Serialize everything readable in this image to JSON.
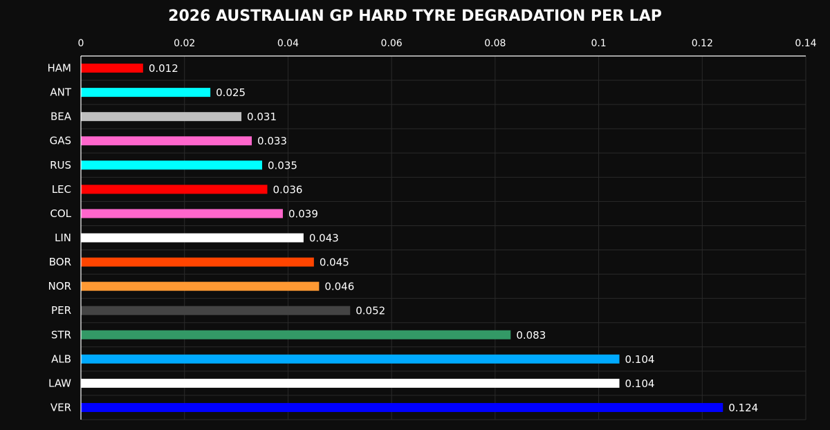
{
  "chart_data": {
    "type": "bar",
    "orientation": "horizontal",
    "title": "2026 AUSTRALIAN GP HARD TYRE DEGRADATION PER LAP",
    "xlabel": "",
    "ylabel": "",
    "xlim": [
      0,
      0.14
    ],
    "x_ticks": [
      "0",
      "0.02",
      "0.04",
      "0.06",
      "0.08",
      "0.1",
      "0.12",
      "0.14"
    ],
    "x_tick_values": [
      0,
      0.02,
      0.04,
      0.06,
      0.08,
      0.1,
      0.12,
      0.14
    ],
    "x_axis_position": "top",
    "grid": true,
    "categories": [
      "HAM",
      "ANT",
      "BEA",
      "GAS",
      "RUS",
      "LEC",
      "COL",
      "LIN",
      "BOR",
      "NOR",
      "PER",
      "STR",
      "ALB",
      "LAW",
      "VER"
    ],
    "values": [
      0.012,
      0.025,
      0.031,
      0.033,
      0.035,
      0.036,
      0.039,
      0.043,
      0.045,
      0.046,
      0.052,
      0.083,
      0.104,
      0.104,
      0.124
    ],
    "value_labels": [
      "0.012",
      "0.025",
      "0.031",
      "0.033",
      "0.035",
      "0.036",
      "0.039",
      "0.043",
      "0.045",
      "0.046",
      "0.052",
      "0.083",
      "0.104",
      "0.104",
      "0.124"
    ],
    "colors": [
      "#ff0000",
      "#00ffff",
      "#bfbfbf",
      "#ff66cc",
      "#00ffff",
      "#ff0000",
      "#ff66cc",
      "#ffffff",
      "#ff4500",
      "#ff9933",
      "#444444",
      "#339966",
      "#00aaff",
      "#ffffff",
      "#0000ff"
    ],
    "background": "#0d0d0d",
    "grid_color": "#2a2a2a",
    "text_color": "#ffffff"
  }
}
